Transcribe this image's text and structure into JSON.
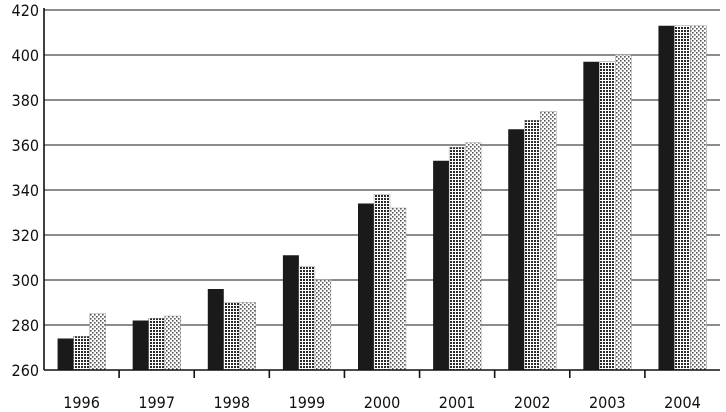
{
  "chart_data": {
    "type": "bar",
    "categories": [
      "1996",
      "1997",
      "1998",
      "1999",
      "2000",
      "2001",
      "2002",
      "2003",
      "2004"
    ],
    "series": [
      {
        "values": [
          274,
          282,
          296,
          311,
          334,
          353,
          367,
          397,
          413
        ]
      },
      {
        "values": [
          275,
          283,
          290,
          306,
          338,
          359,
          371,
          397,
          413
        ]
      },
      {
        "values": [
          285,
          284,
          290,
          300,
          332,
          361,
          375,
          400,
          413
        ]
      }
    ],
    "ylim": [
      260,
      420
    ],
    "yticks": [
      260,
      280,
      300,
      320,
      340,
      360,
      380,
      400,
      420
    ],
    "grid": true,
    "title": "",
    "xlabel": "",
    "ylabel": "",
    "colors": {
      "series_0": "#1a1a1a",
      "series_1_dot": "#2a2a2a",
      "series_2_dot": "#555555",
      "background": "#ffffff"
    }
  }
}
